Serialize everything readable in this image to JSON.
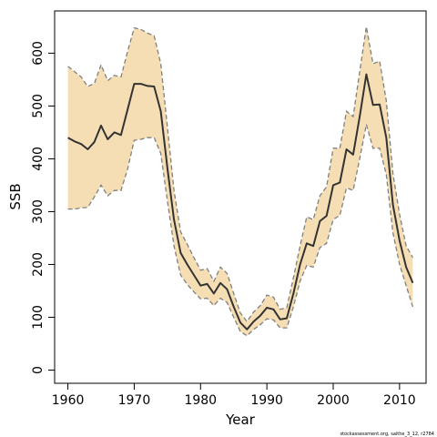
{
  "chart_data": {
    "type": "area",
    "title": "",
    "xlabel": "Year",
    "ylabel": "SSB",
    "xlim": [
      1958,
      2014
    ],
    "ylim": [
      -25,
      680
    ],
    "x_ticks": [
      1960,
      1970,
      1980,
      1990,
      2000,
      2010
    ],
    "y_ticks": [
      0,
      100,
      200,
      300,
      400,
      500,
      600
    ],
    "grid": false,
    "legend": "none",
    "x": [
      1960,
      1961,
      1962,
      1963,
      1964,
      1965,
      1966,
      1967,
      1968,
      1969,
      1970,
      1971,
      1972,
      1973,
      1974,
      1975,
      1976,
      1977,
      1978,
      1979,
      1980,
      1981,
      1982,
      1983,
      1984,
      1985,
      1986,
      1987,
      1988,
      1989,
      1990,
      1991,
      1992,
      1993,
      1994,
      1995,
      1996,
      1997,
      1998,
      1999,
      2000,
      2001,
      2002,
      2003,
      2004,
      2005,
      2006,
      2007,
      2008,
      2009,
      2010,
      2011,
      2012
    ],
    "series": [
      {
        "role": "estimate",
        "values": [
          440,
          433,
          428,
          418,
          432,
          463,
          437,
          450,
          445,
          493,
          542,
          542,
          538,
          537,
          490,
          382,
          285,
          222,
          200,
          180,
          160,
          163,
          145,
          165,
          153,
          120,
          90,
          77,
          92,
          103,
          118,
          115,
          96,
          98,
          145,
          200,
          240,
          235,
          282,
          292,
          350,
          355,
          418,
          408,
          480,
          560,
          502,
          503,
          440,
          313,
          245,
          195,
          165
        ]
      },
      {
        "role": "lower",
        "values": [
          305,
          305,
          307,
          308,
          328,
          350,
          330,
          340,
          340,
          380,
          435,
          437,
          440,
          440,
          410,
          320,
          235,
          180,
          162,
          148,
          135,
          136,
          122,
          136,
          128,
          100,
          73,
          65,
          77,
          86,
          97,
          95,
          80,
          80,
          120,
          168,
          198,
          195,
          232,
          240,
          285,
          293,
          345,
          340,
          400,
          465,
          420,
          420,
          370,
          260,
          200,
          160,
          120
        ]
      },
      {
        "role": "upper",
        "values": [
          575,
          565,
          555,
          537,
          543,
          578,
          548,
          558,
          555,
          603,
          648,
          645,
          638,
          633,
          580,
          460,
          340,
          262,
          238,
          213,
          189,
          192,
          168,
          195,
          183,
          145,
          108,
          92,
          110,
          122,
          142,
          138,
          115,
          118,
          175,
          235,
          290,
          285,
          330,
          347,
          420,
          420,
          490,
          480,
          565,
          650,
          580,
          585,
          510,
          372,
          295,
          235,
          213
        ]
      }
    ],
    "colors": {
      "band": "#f5deb3",
      "band_edge": "#808080",
      "line": "#333333",
      "axis": "#000000"
    },
    "footnote": "stockassessment.org, saithe_3_12, r2784"
  }
}
